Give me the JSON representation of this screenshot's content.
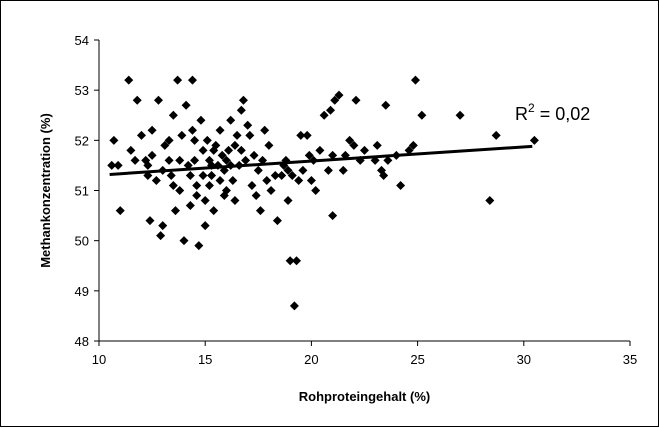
{
  "chart_data": {
    "type": "scatter",
    "xlabel": "Rohproteingehalt (%)",
    "ylabel": "Methankonzentration (%)",
    "xlim": [
      10,
      35
    ],
    "ylim": [
      48,
      54
    ],
    "x_ticks": [
      "10",
      "15",
      "20",
      "25",
      "30",
      "35"
    ],
    "y_ticks": [
      "48",
      "49",
      "50",
      "51",
      "52",
      "53",
      "54"
    ],
    "annotation": {
      "base": "R",
      "sup": "2",
      "rest": " = 0,02"
    },
    "trendline": {
      "x": [
        10.5,
        30.4
      ],
      "y": [
        51.32,
        51.88
      ]
    },
    "marker_color": "#000000",
    "series": [
      {
        "points": [
          [
            10.6,
            51.5
          ],
          [
            10.7,
            52.0
          ],
          [
            10.9,
            51.5
          ],
          [
            11.0,
            50.6
          ],
          [
            11.4,
            53.2
          ],
          [
            11.5,
            51.8
          ],
          [
            11.7,
            51.6
          ],
          [
            11.8,
            52.8
          ],
          [
            12.0,
            52.1
          ],
          [
            12.2,
            51.6
          ],
          [
            12.3,
            51.3
          ],
          [
            12.3,
            51.5
          ],
          [
            12.4,
            50.4
          ],
          [
            12.5,
            52.2
          ],
          [
            12.5,
            51.7
          ],
          [
            12.7,
            51.2
          ],
          [
            12.8,
            52.8
          ],
          [
            12.9,
            50.1
          ],
          [
            13.0,
            51.4
          ],
          [
            13.0,
            50.3
          ],
          [
            13.1,
            51.9
          ],
          [
            13.3,
            52.0
          ],
          [
            13.3,
            51.6
          ],
          [
            13.4,
            51.3
          ],
          [
            13.5,
            52.5
          ],
          [
            13.5,
            51.1
          ],
          [
            13.6,
            50.6
          ],
          [
            13.7,
            53.2
          ],
          [
            13.8,
            51.6
          ],
          [
            13.8,
            51.0
          ],
          [
            13.9,
            52.1
          ],
          [
            14.0,
            50.0
          ],
          [
            14.1,
            52.7
          ],
          [
            14.2,
            51.5
          ],
          [
            14.3,
            51.3
          ],
          [
            14.3,
            50.7
          ],
          [
            14.4,
            53.2
          ],
          [
            14.4,
            52.2
          ],
          [
            14.5,
            52.0
          ],
          [
            14.5,
            51.6
          ],
          [
            14.6,
            51.1
          ],
          [
            14.6,
            50.9
          ],
          [
            14.7,
            49.9
          ],
          [
            14.8,
            52.4
          ],
          [
            14.9,
            51.8
          ],
          [
            14.9,
            51.3
          ],
          [
            15.0,
            50.8
          ],
          [
            15.0,
            50.3
          ],
          [
            15.1,
            52.0
          ],
          [
            15.2,
            51.6
          ],
          [
            15.2,
            51.1
          ],
          [
            15.3,
            51.5
          ],
          [
            15.3,
            51.3
          ],
          [
            15.4,
            50.6
          ],
          [
            15.4,
            51.8
          ],
          [
            15.5,
            51.9
          ],
          [
            15.6,
            51.5
          ],
          [
            15.7,
            52.2
          ],
          [
            15.7,
            51.2
          ],
          [
            15.8,
            51.7
          ],
          [
            15.9,
            51.4
          ],
          [
            15.9,
            50.9
          ],
          [
            16.0,
            51.6
          ],
          [
            16.0,
            51.0
          ],
          [
            16.1,
            51.8
          ],
          [
            16.2,
            52.4
          ],
          [
            16.2,
            51.5
          ],
          [
            16.3,
            51.2
          ],
          [
            16.4,
            51.9
          ],
          [
            16.4,
            50.8
          ],
          [
            16.5,
            52.1
          ],
          [
            16.6,
            51.5
          ],
          [
            16.7,
            52.6
          ],
          [
            16.7,
            51.8
          ],
          [
            16.8,
            52.8
          ],
          [
            16.9,
            51.6
          ],
          [
            17.0,
            52.3
          ],
          [
            17.1,
            52.1
          ],
          [
            17.2,
            51.1
          ],
          [
            17.3,
            51.7
          ],
          [
            17.4,
            50.9
          ],
          [
            17.5,
            51.4
          ],
          [
            17.6,
            50.6
          ],
          [
            17.7,
            51.6
          ],
          [
            17.8,
            52.2
          ],
          [
            17.9,
            51.2
          ],
          [
            18.0,
            51.9
          ],
          [
            18.1,
            51.0
          ],
          [
            18.3,
            51.3
          ],
          [
            18.4,
            50.4
          ],
          [
            18.6,
            51.3
          ],
          [
            18.7,
            51.5
          ],
          [
            18.8,
            51.6
          ],
          [
            18.9,
            50.8
          ],
          [
            18.9,
            51.4
          ],
          [
            19.0,
            49.6
          ],
          [
            19.1,
            51.3
          ],
          [
            19.2,
            48.7
          ],
          [
            19.3,
            49.6
          ],
          [
            19.4,
            51.2
          ],
          [
            19.5,
            52.1
          ],
          [
            19.6,
            51.4
          ],
          [
            19.8,
            52.1
          ],
          [
            19.9,
            51.7
          ],
          [
            20.0,
            51.2
          ],
          [
            20.1,
            51.6
          ],
          [
            20.2,
            51.0
          ],
          [
            20.4,
            51.8
          ],
          [
            20.6,
            52.5
          ],
          [
            20.8,
            51.4
          ],
          [
            20.9,
            52.6
          ],
          [
            21.0,
            51.7
          ],
          [
            21.0,
            50.5
          ],
          [
            21.1,
            52.8
          ],
          [
            21.3,
            52.9
          ],
          [
            21.5,
            51.4
          ],
          [
            21.6,
            51.7
          ],
          [
            21.8,
            52.0
          ],
          [
            22.0,
            51.9
          ],
          [
            22.1,
            52.8
          ],
          [
            22.3,
            51.6
          ],
          [
            22.5,
            51.8
          ],
          [
            23.0,
            51.6
          ],
          [
            23.1,
            51.9
          ],
          [
            23.3,
            51.4
          ],
          [
            23.4,
            51.3
          ],
          [
            23.5,
            52.7
          ],
          [
            23.6,
            51.6
          ],
          [
            24.0,
            51.7
          ],
          [
            24.2,
            51.1
          ],
          [
            24.6,
            51.8
          ],
          [
            24.8,
            51.9
          ],
          [
            24.9,
            53.2
          ],
          [
            25.2,
            52.5
          ],
          [
            27.0,
            52.5
          ],
          [
            28.4,
            50.8
          ],
          [
            28.7,
            52.1
          ],
          [
            30.5,
            52.0
          ]
        ]
      }
    ]
  }
}
